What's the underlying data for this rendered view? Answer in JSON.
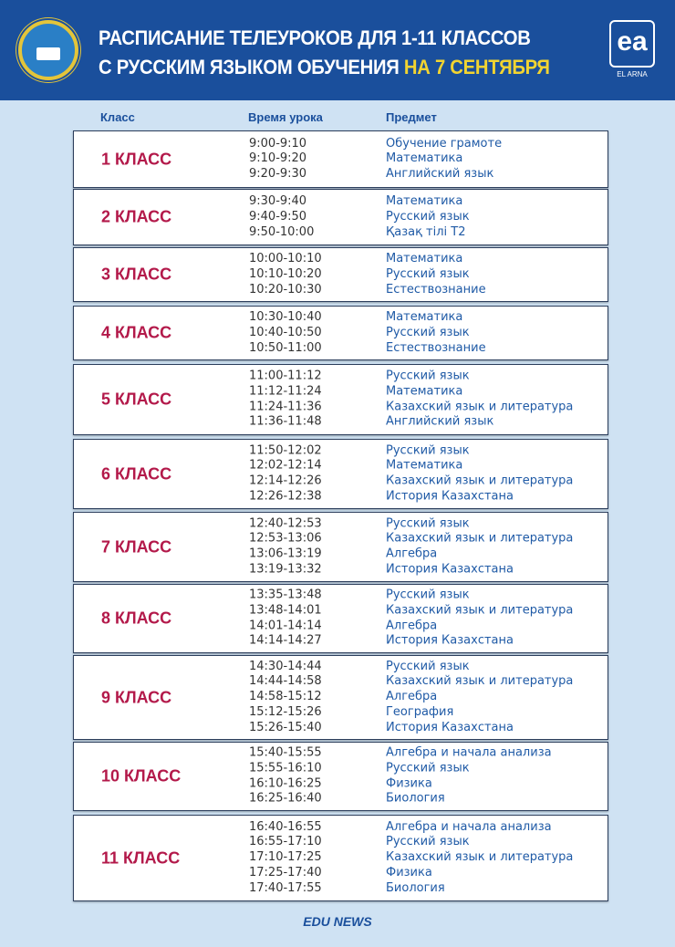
{
  "header": {
    "title_line1": "РАСПИСАНИЕ ТЕЛЕУРОКОВ ДЛЯ 1-11 КЛАССОВ",
    "title_line2_main": "С РУССКИМ ЯЗЫКОМ ОБУЧЕНИЯ",
    "title_line2_highlight": "НА 7 СЕНТЯБРЯ",
    "logo_letters": "ea",
    "logo_text": "EL ARNA"
  },
  "columns": {
    "class": "Класс",
    "time": "Время урока",
    "subject": "Предмет"
  },
  "rows": [
    {
      "class": "1 КЛАСС",
      "times": [
        "9:00-9:10",
        "9:10-9:20",
        "9:20-9:30"
      ],
      "subjects": [
        "Обучение грамоте",
        "Математика",
        "Английский язык"
      ]
    },
    {
      "class": "2 КЛАСС",
      "times": [
        "9:30-9:40",
        "9:40-9:50",
        "9:50-10:00"
      ],
      "subjects": [
        "Математика",
        "Русский язык",
        "Қазақ тілі  Т2"
      ]
    },
    {
      "class": "3 КЛАСС",
      "times": [
        "10:00-10:10",
        "10:10-10:20",
        "10:20-10:30"
      ],
      "subjects": [
        "Математика",
        "Русский язык",
        "Естествознание"
      ]
    },
    {
      "class": "4 КЛАСС",
      "times": [
        "10:30-10:40",
        "10:40-10:50",
        "10:50-11:00"
      ],
      "subjects": [
        "Математика",
        "Русский язык",
        "Естествознание"
      ]
    },
    {
      "class": "5 КЛАСС",
      "times": [
        "11:00-11:12",
        "11:12-11:24",
        "11:24-11:36",
        "11:36-11:48"
      ],
      "subjects": [
        "Русский язык",
        "Математика",
        "Казахский язык и литература",
        "Английский язык"
      ]
    },
    {
      "class": "6 КЛАСС",
      "times": [
        "11:50-12:02",
        "12:02-12:14",
        "12:14-12:26",
        "12:26-12:38"
      ],
      "subjects": [
        "Русский язык",
        "Математика",
        "Казахский язык и литература",
        "История Казахстана"
      ]
    },
    {
      "class": "7 КЛАСС",
      "times": [
        "12:40-12:53",
        "12:53-13:06",
        "13:06-13:19",
        "13:19-13:32"
      ],
      "subjects": [
        "Русский язык",
        "Казахский язык и литература",
        "Алгебра",
        "История Казахстана"
      ]
    },
    {
      "class": "8 КЛАСС",
      "times": [
        "13:35-13:48",
        "13:48-14:01",
        "14:01-14:14",
        "14:14-14:27"
      ],
      "subjects": [
        "Русский язык",
        "Казахский язык и литература",
        "Алгебра",
        "История Казахстана"
      ]
    },
    {
      "class": "9 КЛАСС",
      "times": [
        "14:30-14:44",
        "14:44-14:58",
        "14:58-15:12",
        "15:12-15:26",
        "15:26-15:40"
      ],
      "subjects": [
        "Русский язык",
        "Казахский язык и литература",
        "Алгебра",
        "География",
        "История Казахстана"
      ]
    },
    {
      "class": "10 КЛАСС",
      "times": [
        "15:40-15:55",
        "15:55-16:10",
        "16:10-16:25",
        "16:25-16:40"
      ],
      "subjects": [
        "Алгебра и начала анализа",
        "Русский язык",
        "Физика",
        "Биология"
      ]
    },
    {
      "class": "11 КЛАСС",
      "times": [
        "16:40-16:55",
        "16:55-17:10",
        "17:10-17:25",
        "17:25-17:40",
        "17:40-17:55"
      ],
      "subjects": [
        "Алгебра и начала анализа",
        "Русский язык",
        "Казахский язык и литература",
        "Физика",
        "Биология"
      ]
    }
  ],
  "footer": "EDU NEWS",
  "colors": {
    "header_bg": "#1a4f9c",
    "highlight": "#f2d431",
    "class_label": "#b3194a",
    "subject": "#1f5aa6",
    "background": "#cfe2f3"
  }
}
